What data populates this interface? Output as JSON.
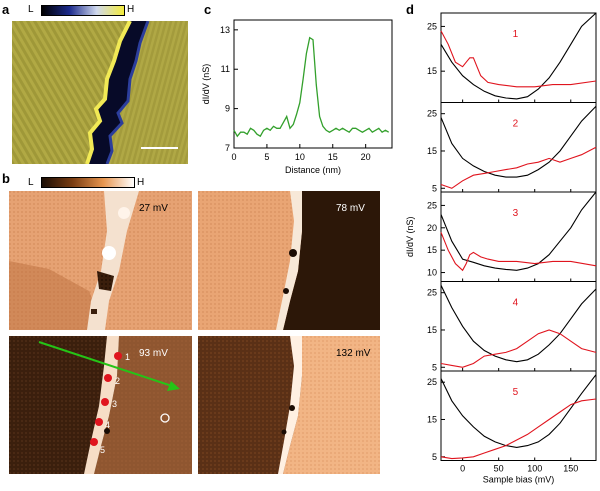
{
  "panels": {
    "a": {
      "label": "a",
      "colorbar": {
        "low": "L",
        "high": "H",
        "colors": [
          "#000000",
          "#1b2a8c",
          "#cfd8ee",
          "#f4ec3c"
        ]
      },
      "colors": {
        "left": "#b3aa42",
        "right": "#a29a3c",
        "boundary": "#0a0d2a",
        "edge": "#f5ef58"
      }
    },
    "b": {
      "label": "b",
      "colorbar": {
        "low": "L",
        "high": "H",
        "colors": [
          "#1a0d05",
          "#7a3d12",
          "#e79650",
          "#ffffff"
        ]
      },
      "maps": [
        {
          "energy": "27 mV"
        },
        {
          "energy": "78 mV"
        },
        {
          "energy": "93 mV",
          "points": [
            "1",
            "2",
            "3",
            "4",
            "5"
          ]
        },
        {
          "energy": "132 mV"
        }
      ],
      "marker_color": "#e0141e",
      "arrow_color": "#25c417"
    },
    "c": {
      "label": "c",
      "chart_data": {
        "type": "line",
        "xlabel": "Distance (nm)",
        "ylabel": "dI/dV (nS)",
        "xlim": [
          0,
          24
        ],
        "ylim": [
          7,
          13.5
        ],
        "xticks": [
          0,
          5,
          10,
          15,
          20
        ],
        "yticks": [
          7,
          9,
          11,
          13
        ],
        "color": "#33a02c",
        "x": [
          0,
          0.5,
          1,
          1.5,
          2,
          2.5,
          3,
          3.5,
          4,
          4.5,
          5,
          5.5,
          6,
          6.5,
          7,
          7.5,
          8,
          8.5,
          9,
          9.5,
          10,
          10.5,
          11,
          11.5,
          12,
          12.5,
          13,
          13.5,
          14,
          14.5,
          15,
          15.5,
          16,
          16.5,
          17,
          17.5,
          18,
          18.5,
          19,
          19.5,
          20,
          20.5,
          21,
          21.5,
          22,
          22.5,
          23,
          23.5
        ],
        "y": [
          7.9,
          7.6,
          7.8,
          7.8,
          7.7,
          8.0,
          7.9,
          7.7,
          7.6,
          7.9,
          8.0,
          7.9,
          8.1,
          8.0,
          8.0,
          8.3,
          8.6,
          8.0,
          8.2,
          8.7,
          9.3,
          10.5,
          11.8,
          12.6,
          12.5,
          10.2,
          8.6,
          8.1,
          7.9,
          7.8,
          7.9,
          8.0,
          7.9,
          8.0,
          7.9,
          7.8,
          8.0,
          8.0,
          7.9,
          7.8,
          7.9,
          8.0,
          7.8,
          7.9,
          8.0,
          7.8,
          7.9,
          7.8
        ]
      }
    },
    "d": {
      "label": "d",
      "chart_data": {
        "type": "line",
        "xlabel": "Sample bias (mV)",
        "ylabel": "dI/dV (nS)",
        "xlim": [
          -30,
          185
        ],
        "xticks": [
          0,
          50,
          100,
          150
        ],
        "subplots": [
          {
            "label": "1",
            "ylim": [
              8,
              28
            ],
            "yticks": [
              15,
              25
            ],
            "series": [
              {
                "name": "black",
                "color": "#000000",
                "x": [
                  -30,
                  -15,
                  0,
                  15,
                  30,
                  45,
                  60,
                  75,
                  90,
                  105,
                  120,
                  135,
                  150,
                  165,
                  185
                ],
                "y": [
                  21,
                  17,
                  14,
                  12,
                  10.5,
                  9.5,
                  9,
                  8.8,
                  9.3,
                  11,
                  13.5,
                  17,
                  21,
                  25,
                  28
                ]
              },
              {
                "name": "red",
                "color": "#e0141e",
                "x": [
                  -30,
                  -20,
                  -10,
                  0,
                  5,
                  10,
                  15,
                  20,
                  25,
                  35,
                  50,
                  75,
                  100,
                  125,
                  150,
                  185
                ],
                "y": [
                  24,
                  21,
                  17,
                  16,
                  17,
                  18,
                  18,
                  16,
                  14,
                  12.5,
                  12,
                  11.5,
                  11.5,
                  12,
                  12,
                  12.8
                ]
              }
            ]
          },
          {
            "label": "2",
            "ylim": [
              4,
              28
            ],
            "yticks": [
              5,
              15,
              25
            ],
            "series": [
              {
                "name": "black",
                "color": "#000000",
                "x": [
                  -30,
                  -15,
                  0,
                  15,
                  30,
                  45,
                  60,
                  75,
                  90,
                  105,
                  120,
                  135,
                  150,
                  165,
                  185
                ],
                "y": [
                  24,
                  17,
                  13,
                  11,
                  9.5,
                  8.5,
                  8,
                  8,
                  8.5,
                  10,
                  12,
                  15,
                  19,
                  23,
                  27
                ]
              },
              {
                "name": "red",
                "color": "#e0141e",
                "x": [
                  -30,
                  -15,
                  0,
                  15,
                  30,
                  45,
                  60,
                  75,
                  90,
                  105,
                  120,
                  135,
                  150,
                  165,
                  185
                ],
                "y": [
                  6,
                  5,
                  7,
                  8.5,
                  9,
                  9.5,
                  10,
                  10.5,
                  11.5,
                  12,
                  13,
                  12,
                  13,
                  14,
                  16
                ]
              }
            ]
          },
          {
            "label": "3",
            "ylim": [
              8,
              28
            ],
            "yticks": [
              10,
              15,
              20,
              25
            ],
            "series": [
              {
                "name": "black",
                "color": "#000000",
                "x": [
                  -30,
                  -15,
                  0,
                  15,
                  30,
                  45,
                  60,
                  75,
                  90,
                  105,
                  120,
                  135,
                  150,
                  165,
                  185
                ],
                "y": [
                  23,
                  17,
                  13,
                  12.3,
                  11.5,
                  11,
                  10.7,
                  10.5,
                  11,
                  12,
                  14,
                  17,
                  20,
                  24,
                  28
                ]
              },
              {
                "name": "red",
                "color": "#e0141e",
                "x": [
                  -30,
                  -20,
                  -10,
                  0,
                  5,
                  10,
                  15,
                  25,
                  35,
                  50,
                  75,
                  100,
                  125,
                  150,
                  185
                ],
                "y": [
                  19,
                  15,
                  12,
                  10.5,
                  12,
                  14,
                  14.5,
                  13.5,
                  13,
                  12.5,
                  12.5,
                  12,
                  12.5,
                  12.5,
                  11.5
                ]
              }
            ]
          },
          {
            "label": "4",
            "ylim": [
              4,
              28
            ],
            "yticks": [
              5,
              15,
              25
            ],
            "series": [
              {
                "name": "black",
                "color": "#000000",
                "x": [
                  -30,
                  -15,
                  0,
                  15,
                  30,
                  45,
                  60,
                  75,
                  90,
                  105,
                  120,
                  135,
                  150,
                  165,
                  185
                ],
                "y": [
                  27,
                  21,
                  16,
                  12,
                  9.5,
                  8,
                  7,
                  6.5,
                  7,
                  8.5,
                  11,
                  14,
                  18,
                  22,
                  26
                ]
              },
              {
                "name": "red",
                "color": "#e0141e",
                "x": [
                  -30,
                  -15,
                  0,
                  15,
                  30,
                  45,
                  60,
                  75,
                  90,
                  105,
                  120,
                  135,
                  150,
                  165,
                  185
                ],
                "y": [
                  6,
                  5.5,
                  5,
                  6,
                  8,
                  8.5,
                  9,
                  10,
                  12,
                  14,
                  15,
                  14,
                  12,
                  10,
                  9
                ]
              }
            ]
          },
          {
            "label": "5",
            "ylim": [
              4,
              28
            ],
            "yticks": [
              5,
              15,
              25
            ],
            "series": [
              {
                "name": "black",
                "color": "#000000",
                "x": [
                  -30,
                  -15,
                  0,
                  15,
                  30,
                  45,
                  60,
                  75,
                  90,
                  105,
                  120,
                  135,
                  150,
                  165,
                  185
                ],
                "y": [
                  26,
                  20,
                  16,
                  13,
                  10.5,
                  9,
                  8,
                  7.5,
                  8,
                  9,
                  11,
                  14,
                  18,
                  22,
                  27
                ]
              },
              {
                "name": "red",
                "color": "#e0141e",
                "x": [
                  -30,
                  -15,
                  0,
                  15,
                  30,
                  45,
                  60,
                  75,
                  90,
                  105,
                  120,
                  135,
                  150,
                  165,
                  185
                ],
                "y": [
                  5,
                  4.5,
                  4.7,
                  5,
                  6,
                  7,
                  8,
                  9.5,
                  11,
                  13,
                  15,
                  17,
                  19,
                  20,
                  20.5
                ]
              }
            ]
          }
        ]
      }
    }
  }
}
